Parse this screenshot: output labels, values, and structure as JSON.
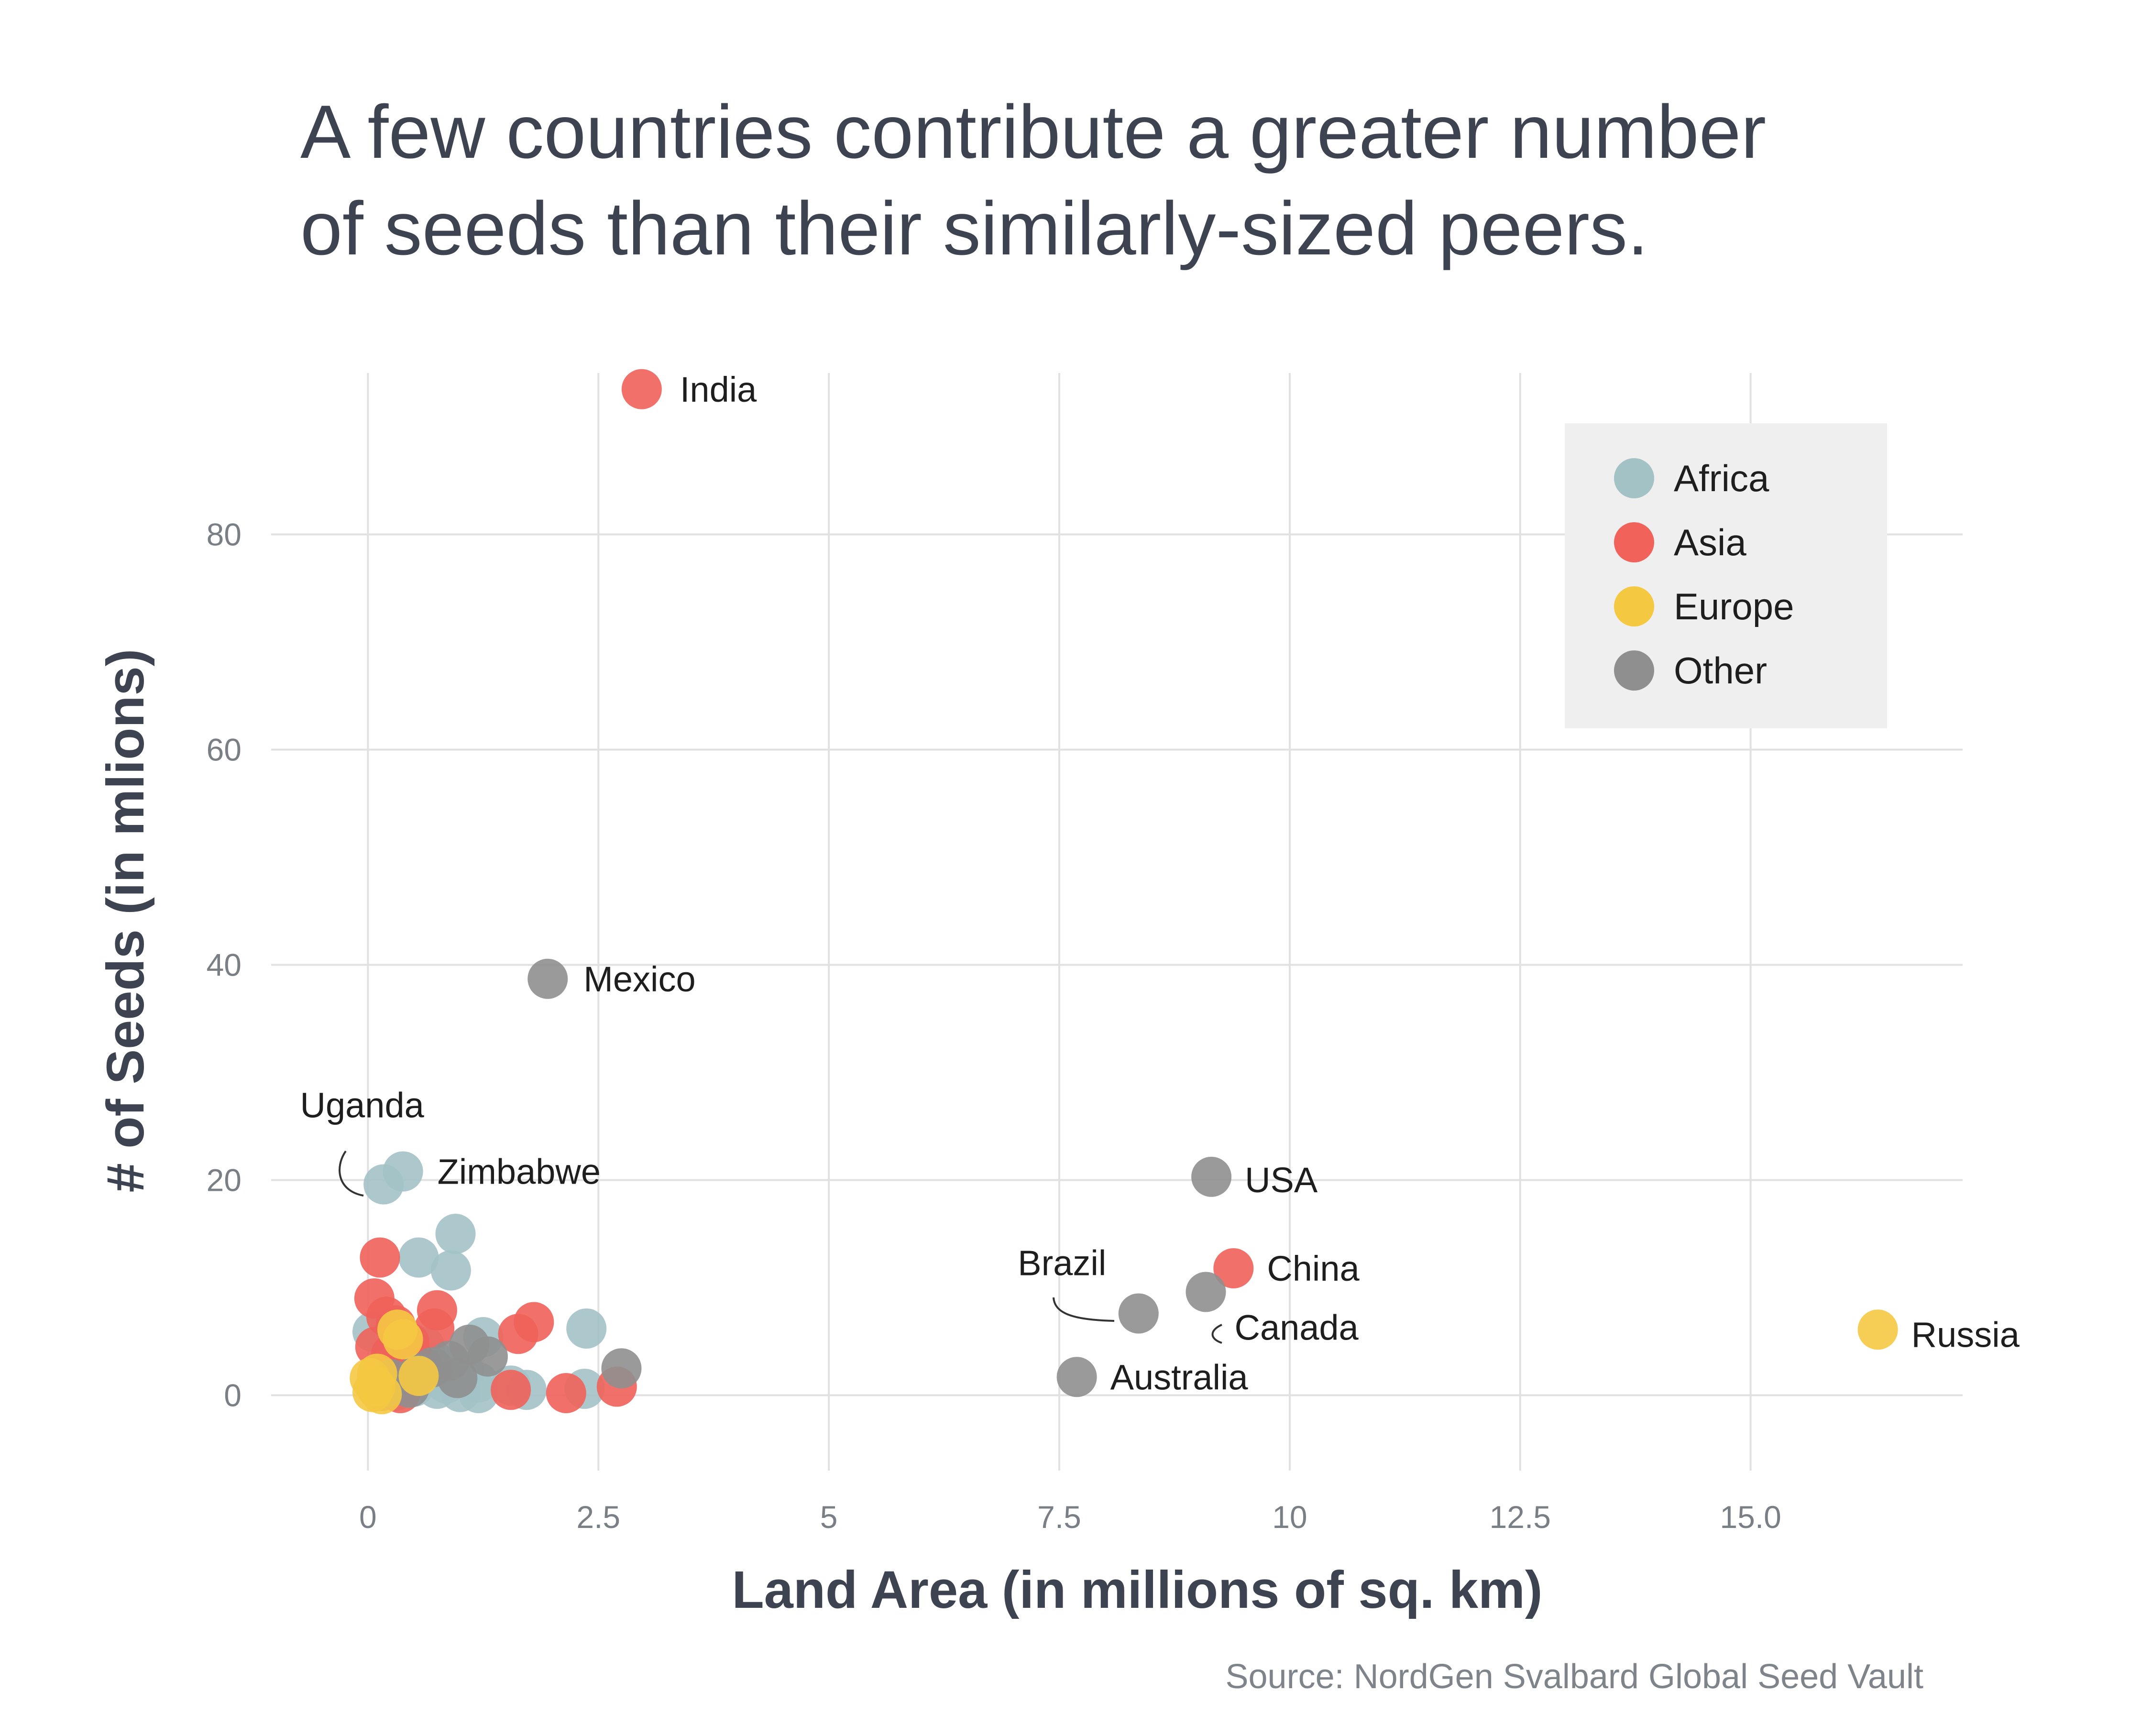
{
  "chart_data": {
    "type": "scatter",
    "title_lines": [
      "A few countries contribute a greater number",
      "of seeds than their similarly-sized peers."
    ],
    "xlabel": "Land Area (in millions of sq. km)",
    "ylabel": "# of Seeds (in mlions)",
    "source": "Source: NordGen Svalbard Global Seed Vault",
    "xlim": [
      -1.05,
      17.3
    ],
    "ylim": [
      -7,
      95
    ],
    "x_ticks": [
      {
        "value": 0,
        "label": "0"
      },
      {
        "value": 2.5,
        "label": "2.5"
      },
      {
        "value": 5,
        "label": "5"
      },
      {
        "value": 7.5,
        "label": "7.5"
      },
      {
        "value": 10,
        "label": "10"
      },
      {
        "value": 12.5,
        "label": "12.5"
      },
      {
        "value": 15,
        "label": "15.0"
      }
    ],
    "y_ticks": [
      {
        "value": 0,
        "label": "0"
      },
      {
        "value": 20,
        "label": "20"
      },
      {
        "value": 40,
        "label": "40"
      },
      {
        "value": 60,
        "label": "60"
      },
      {
        "value": 80,
        "label": "80"
      }
    ],
    "grid": true,
    "legend_position": "top-right",
    "colors": {
      "Africa": "#a3c2c6",
      "Asia": "#f0625a",
      "Europe": "#f5c842",
      "Other": "#8f8f8f"
    },
    "series": [
      {
        "name": "Africa",
        "points": [
          [
            0.17,
            19.6
          ],
          [
            0.38,
            20.8
          ],
          [
            0.95,
            15.0
          ],
          [
            0.55,
            12.8
          ],
          [
            0.9,
            11.6
          ],
          [
            2.37,
            6.2
          ],
          [
            1.25,
            5.4
          ],
          [
            0.05,
            5.9
          ],
          [
            0.62,
            4.5
          ],
          [
            0.75,
            3.0
          ],
          [
            1.05,
            2.2
          ],
          [
            1.2,
            1.2
          ],
          [
            1.72,
            0.5
          ],
          [
            2.35,
            0.6
          ],
          [
            0.25,
            1.6
          ],
          [
            0.5,
            0.8
          ],
          [
            0.75,
            0.6
          ],
          [
            1.0,
            0.3
          ],
          [
            1.2,
            0.2
          ],
          [
            0.1,
            0.9
          ],
          [
            0.4,
            2.4
          ],
          [
            0.85,
            1.1
          ],
          [
            0.3,
            0.4
          ],
          [
            1.55,
            0.9
          ]
        ]
      },
      {
        "name": "Asia",
        "points": [
          [
            2.97,
            93.5
          ],
          [
            9.39,
            11.8
          ],
          [
            0.13,
            12.8
          ],
          [
            0.07,
            9.0
          ],
          [
            0.75,
            7.9
          ],
          [
            1.8,
            6.8
          ],
          [
            1.63,
            5.7
          ],
          [
            0.2,
            7.3
          ],
          [
            0.3,
            6.5
          ],
          [
            0.72,
            6.2
          ],
          [
            0.08,
            4.5
          ],
          [
            0.25,
            3.8
          ],
          [
            0.5,
            3.3
          ],
          [
            1.55,
            0.5
          ],
          [
            2.15,
            0.2
          ],
          [
            2.7,
            0.8
          ],
          [
            0.1,
            0.6
          ],
          [
            0.35,
            0.2
          ],
          [
            0.18,
            2.0
          ],
          [
            0.45,
            4.9
          ],
          [
            0.6,
            2.6
          ],
          [
            0.15,
            0.4
          ]
        ]
      },
      {
        "name": "Europe",
        "points": [
          [
            16.38,
            6.1
          ],
          [
            0.32,
            6.1
          ],
          [
            0.38,
            5.2
          ],
          [
            0.55,
            1.8
          ],
          [
            0.02,
            1.6
          ],
          [
            0.1,
            2.0
          ],
          [
            0.05,
            0.3
          ],
          [
            0.15,
            0.1
          ],
          [
            0.08,
            0.8
          ]
        ]
      },
      {
        "name": "Other",
        "points": [
          [
            1.95,
            38.7
          ],
          [
            9.15,
            20.3
          ],
          [
            8.36,
            7.6
          ],
          [
            9.09,
            9.6
          ],
          [
            7.69,
            1.7
          ],
          [
            2.75,
            2.5
          ],
          [
            1.1,
            4.7
          ],
          [
            1.3,
            3.6
          ],
          [
            0.97,
            1.6
          ],
          [
            0.25,
            1.5
          ],
          [
            0.7,
            2.6
          ],
          [
            0.45,
            0.7
          ],
          [
            0.88,
            3.2
          ],
          [
            0.15,
            0.5
          ],
          [
            0.55,
            2.0
          ]
        ]
      }
    ],
    "labels": [
      {
        "text": "India",
        "x": 2.97,
        "y": 93.5
      },
      {
        "text": "Mexico",
        "x": 1.95,
        "y": 38.7
      },
      {
        "text": "Uganda",
        "x": 0.17,
        "y": 19.6
      },
      {
        "text": "Zimbabwe",
        "x": 0.38,
        "y": 20.8
      },
      {
        "text": "USA",
        "x": 9.15,
        "y": 20.3
      },
      {
        "text": "China",
        "x": 9.39,
        "y": 11.8
      },
      {
        "text": "Brazil",
        "x": 8.36,
        "y": 7.6
      },
      {
        "text": "Canada",
        "x": 9.09,
        "y": 9.6
      },
      {
        "text": "Australia",
        "x": 7.69,
        "y": 1.7
      },
      {
        "text": "Russia",
        "x": 16.38,
        "y": 6.1
      }
    ],
    "legend": [
      "Africa",
      "Asia",
      "Europe",
      "Other"
    ]
  }
}
